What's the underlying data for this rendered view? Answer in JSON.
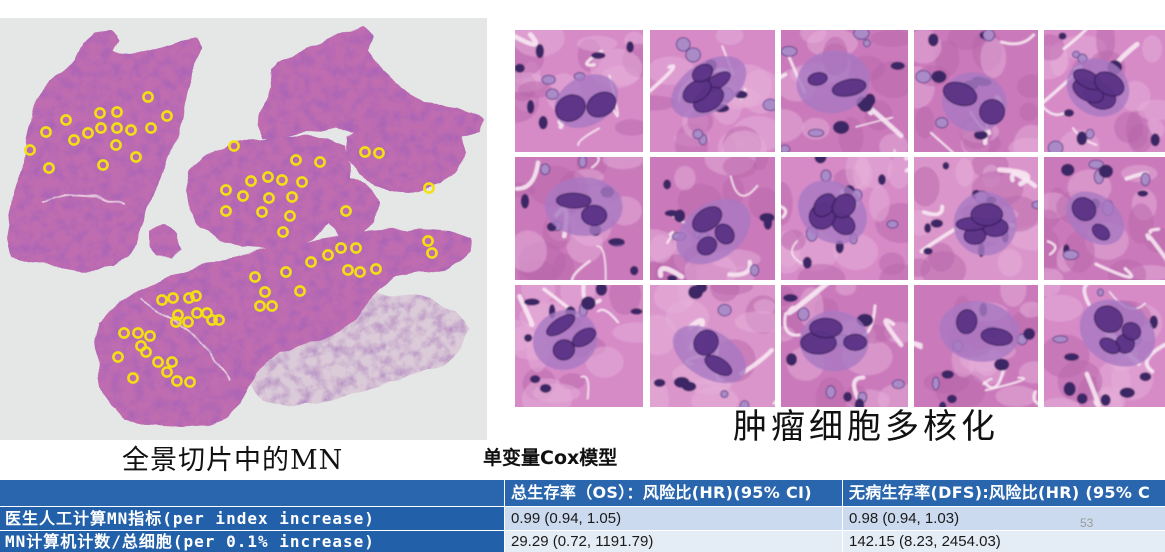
{
  "left_figure": {
    "caption": "全景切片中的MN"
  },
  "right_figure": {
    "caption": "肿瘤细胞多核化"
  },
  "table": {
    "title": "单变量Cox模型",
    "header": {
      "os": "总生存率（OS）：风险比(HR)(95% CI)",
      "dfs": "无病生存率(DFS):风险比(HR) (95% C"
    },
    "rows": [
      {
        "label": "医生人工计算MN指标(per index increase)",
        "os": "0.99 (0.94, 1.05)",
        "dfs": "0.98 (0.94, 1.03)"
      },
      {
        "label": "MN计算机计数/总细胞(per 0.1% increase)",
        "os": "29.29 (0.72, 1191.79)",
        "dfs": "142.15 (8.23, 2454.03)"
      }
    ]
  },
  "slide": {
    "page_number": "53"
  },
  "colors": {
    "header_bg": "#2a66ae",
    "label_bg": "#2260a9",
    "row1_bg": "#cbdaee",
    "row2_bg": "#e4ecf6",
    "marker": "#f2e012",
    "tissue": "#bf6db0",
    "tissue_pale": "#d9c5d6",
    "slide_bg": "#e5e6e6"
  }
}
